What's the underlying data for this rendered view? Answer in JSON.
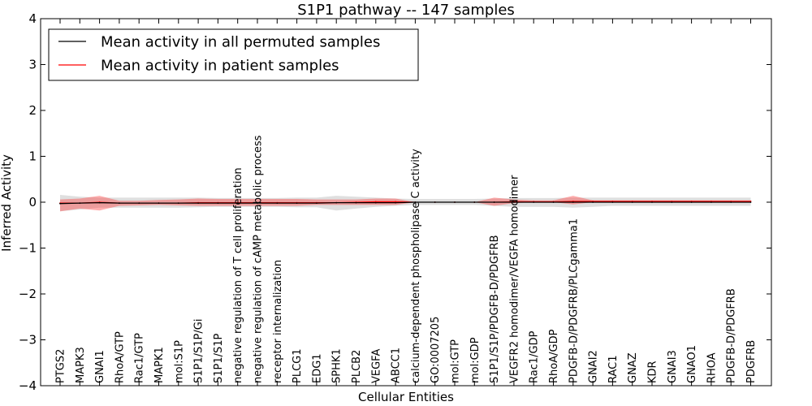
{
  "chart_data": {
    "type": "line",
    "title": "S1P1 pathway -- 147 samples",
    "xlabel": "Cellular Entities",
    "ylabel": "Inferred Activity",
    "ylim": [
      -4,
      4
    ],
    "yticks": [
      -4,
      -3,
      -2,
      -1,
      0,
      1,
      2,
      3,
      4
    ],
    "ytick_labels": [
      "−4",
      "−3",
      "−2",
      "−1",
      "0",
      "1",
      "2",
      "3",
      "4"
    ],
    "grid": false,
    "legend_position": "top-left",
    "categories": [
      "PTGS2",
      "MAPK3",
      "GNAI1",
      "RhoA/GTP",
      "Rac1/GTP",
      "MAPK1",
      "mol:S1P",
      "S1P1/S1P/Gi",
      "S1P1/S1P",
      "negative regulation of T cell proliferation",
      "negative regulation of cAMP metabolic process",
      "receptor internalization",
      "PLCG1",
      "EDG1",
      "SPHK1",
      "PLCB2",
      "VEGFA",
      "ABCC1",
      "calcium-dependent phospholipase C activity",
      "GO:0007205",
      "mol:GTP",
      "mol:GDP",
      "S1P1/S1P/PDGFB-D/PDGFRB",
      "VEGFR2 homodimer/VEGFA homodimer",
      "Rac1/GDP",
      "RhoA/GDP",
      "PDGFB-D/PDGFRB/PLCgamma1",
      "GNAI2",
      "RAC1",
      "GNAZ",
      "KDR",
      "GNAI3",
      "GNAO1",
      "RHOA",
      "PDGFB-D/PDGFRB",
      "PDGFRB"
    ],
    "series": [
      {
        "name": "Mean activity in all permuted samples",
        "color": "#000000",
        "values": [
          -0.03,
          -0.02,
          -0.01,
          -0.02,
          -0.02,
          -0.02,
          -0.02,
          -0.02,
          -0.02,
          -0.02,
          -0.02,
          -0.02,
          -0.02,
          -0.02,
          -0.01,
          -0.01,
          -0.01,
          -0.01,
          0.0,
          0.0,
          0.0,
          0.0,
          0.0,
          0.0,
          0.0,
          0.0,
          0.0,
          0.0,
          0.0,
          0.0,
          0.0,
          0.0,
          0.0,
          0.0,
          0.0,
          0.0
        ],
        "lower": [
          -0.2,
          -0.16,
          -0.12,
          -0.12,
          -0.12,
          -0.12,
          -0.12,
          -0.11,
          -0.1,
          -0.1,
          -0.1,
          -0.1,
          -0.11,
          -0.11,
          -0.18,
          -0.14,
          -0.1,
          -0.08,
          -0.06,
          -0.06,
          -0.06,
          -0.06,
          -0.08,
          -0.1,
          -0.1,
          -0.1,
          -0.12,
          -0.1,
          -0.08,
          -0.08,
          -0.08,
          -0.08,
          -0.08,
          -0.08,
          -0.08,
          -0.08
        ],
        "upper": [
          0.16,
          0.12,
          0.1,
          0.1,
          0.1,
          0.1,
          0.1,
          0.1,
          0.09,
          0.09,
          0.09,
          0.09,
          0.1,
          0.1,
          0.14,
          0.12,
          0.1,
          0.08,
          0.07,
          0.07,
          0.07,
          0.07,
          0.08,
          0.09,
          0.09,
          0.09,
          0.1,
          0.1,
          0.1,
          0.1,
          0.1,
          0.1,
          0.1,
          0.1,
          0.1,
          0.1
        ]
      },
      {
        "name": "Mean activity in patient samples",
        "color": "#ff0000",
        "values": [
          -0.02,
          -0.02,
          0.0,
          -0.02,
          -0.02,
          -0.02,
          -0.02,
          -0.01,
          -0.01,
          -0.01,
          -0.01,
          -0.01,
          -0.01,
          -0.01,
          -0.01,
          0.0,
          0.01,
          0.01,
          0.0,
          0.0,
          0.0,
          0.0,
          0.0,
          0.01,
          0.01,
          0.01,
          0.02,
          0.02,
          0.02,
          0.02,
          0.02,
          0.02,
          0.02,
          0.02,
          0.02,
          0.02
        ],
        "lower": [
          -0.2,
          -0.14,
          -0.18,
          -0.08,
          -0.07,
          -0.06,
          -0.07,
          -0.08,
          -0.08,
          -0.08,
          -0.08,
          -0.08,
          -0.08,
          -0.06,
          -0.06,
          -0.06,
          -0.06,
          -0.06,
          0.0,
          0.0,
          0.0,
          0.0,
          -0.08,
          -0.02,
          0.0,
          0.0,
          -0.05,
          0.0,
          0.0,
          0.0,
          0.0,
          0.0,
          0.0,
          0.0,
          0.0,
          0.0
        ],
        "upper": [
          0.06,
          0.08,
          0.14,
          0.03,
          0.03,
          0.05,
          0.06,
          0.08,
          0.07,
          0.07,
          0.07,
          0.07,
          0.07,
          0.06,
          0.06,
          0.06,
          0.08,
          0.08,
          0.0,
          0.0,
          0.0,
          0.0,
          0.1,
          0.06,
          0.04,
          0.04,
          0.14,
          0.04,
          0.04,
          0.04,
          0.04,
          0.04,
          0.04,
          0.04,
          0.04,
          0.04
        ]
      }
    ]
  }
}
